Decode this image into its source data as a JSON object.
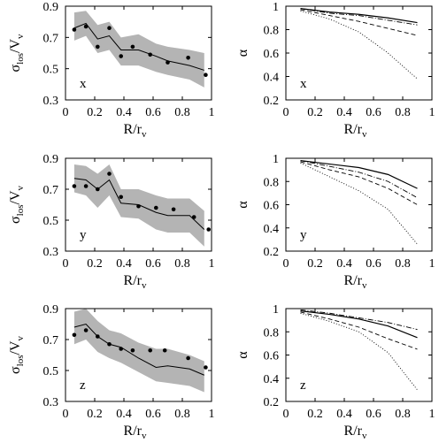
{
  "chart_data": [
    {
      "type": "line",
      "panel_label": "x",
      "xlabel": "R/r_v",
      "ylabel": "σ_los/V_v",
      "xlim": [
        0,
        1
      ],
      "ylim": [
        0.3,
        0.9
      ],
      "xticks": [
        "0",
        "0.2",
        "0.4",
        "0.6",
        "0.8",
        "1"
      ],
      "yticks": [
        "0.3",
        "0.5",
        "0.7",
        "0.9"
      ],
      "band": {
        "x": [
          0.06,
          0.14,
          0.22,
          0.3,
          0.38,
          0.5,
          0.62,
          0.7,
          0.85,
          0.95
        ],
        "lower": [
          0.68,
          0.71,
          0.6,
          0.62,
          0.52,
          0.52,
          0.48,
          0.46,
          0.43,
          0.38
        ],
        "upper": [
          0.86,
          0.87,
          0.78,
          0.8,
          0.7,
          0.72,
          0.66,
          0.64,
          0.62,
          0.6
        ]
      },
      "median": {
        "x": [
          0.06,
          0.14,
          0.22,
          0.3,
          0.38,
          0.5,
          0.62,
          0.7,
          0.85,
          0.95
        ],
        "y": [
          0.76,
          0.79,
          0.69,
          0.71,
          0.62,
          0.62,
          0.58,
          0.55,
          0.52,
          0.49
        ]
      },
      "points": {
        "x": [
          0.06,
          0.14,
          0.22,
          0.3,
          0.38,
          0.46,
          0.58,
          0.7,
          0.84,
          0.96
        ],
        "y": [
          0.75,
          0.77,
          0.64,
          0.76,
          0.58,
          0.64,
          0.59,
          0.54,
          0.57,
          0.46
        ]
      }
    },
    {
      "type": "line",
      "panel_label": "x",
      "xlabel": "R/r_v",
      "ylabel": "α",
      "xlim": [
        0,
        1
      ],
      "ylim": [
        0.2,
        1.0
      ],
      "xticks": [
        "0",
        "0.2",
        "0.4",
        "0.6",
        "0.8",
        "1"
      ],
      "yticks": [
        "0.2",
        "0.4",
        "0.6",
        "0.8",
        "1"
      ],
      "series": [
        {
          "style": "solid",
          "x": [
            0.1,
            0.3,
            0.5,
            0.7,
            0.9
          ],
          "y": [
            0.98,
            0.95,
            0.93,
            0.9,
            0.86
          ]
        },
        {
          "style": "dashdot",
          "x": [
            0.1,
            0.3,
            0.5,
            0.7,
            0.9
          ],
          "y": [
            0.98,
            0.94,
            0.92,
            0.88,
            0.84
          ]
        },
        {
          "style": "dashed",
          "x": [
            0.1,
            0.3,
            0.5,
            0.7,
            0.9
          ],
          "y": [
            0.97,
            0.92,
            0.87,
            0.81,
            0.75
          ]
        },
        {
          "style": "dotted",
          "x": [
            0.1,
            0.3,
            0.5,
            0.7,
            0.9
          ],
          "y": [
            0.96,
            0.89,
            0.78,
            0.6,
            0.38
          ]
        }
      ]
    },
    {
      "type": "line",
      "panel_label": "y",
      "xlabel": "R/r_v",
      "ylabel": "σ_los/V_v",
      "xlim": [
        0,
        1
      ],
      "ylim": [
        0.3,
        0.9
      ],
      "xticks": [
        "0",
        "0.2",
        "0.4",
        "0.6",
        "0.8",
        "1"
      ],
      "yticks": [
        "0.3",
        "0.5",
        "0.7",
        "0.9"
      ],
      "band": {
        "x": [
          0.06,
          0.14,
          0.22,
          0.3,
          0.38,
          0.5,
          0.62,
          0.7,
          0.85,
          0.95
        ],
        "lower": [
          0.68,
          0.66,
          0.58,
          0.66,
          0.52,
          0.51,
          0.44,
          0.42,
          0.42,
          0.33
        ],
        "upper": [
          0.86,
          0.85,
          0.8,
          0.86,
          0.7,
          0.7,
          0.66,
          0.64,
          0.64,
          0.56
        ]
      },
      "median": {
        "x": [
          0.06,
          0.14,
          0.22,
          0.3,
          0.38,
          0.5,
          0.62,
          0.7,
          0.85,
          0.95
        ],
        "y": [
          0.77,
          0.76,
          0.7,
          0.76,
          0.61,
          0.6,
          0.55,
          0.53,
          0.53,
          0.44
        ]
      },
      "points": {
        "x": [
          0.06,
          0.14,
          0.22,
          0.3,
          0.38,
          0.5,
          0.62,
          0.74,
          0.88,
          0.98
        ],
        "y": [
          0.72,
          0.72,
          0.7,
          0.8,
          0.65,
          0.59,
          0.58,
          0.57,
          0.52,
          0.44
        ]
      }
    },
    {
      "type": "line",
      "panel_label": "y",
      "xlabel": "R/r_v",
      "ylabel": "α",
      "xlim": [
        0,
        1
      ],
      "ylim": [
        0.2,
        1.0
      ],
      "xticks": [
        "0",
        "0.2",
        "0.4",
        "0.6",
        "0.8",
        "1"
      ],
      "yticks": [
        "0.2",
        "0.4",
        "0.6",
        "0.8",
        "1"
      ],
      "series": [
        {
          "style": "solid",
          "x": [
            0.1,
            0.3,
            0.5,
            0.7,
            0.9
          ],
          "y": [
            0.98,
            0.95,
            0.92,
            0.86,
            0.74
          ]
        },
        {
          "style": "dashdot",
          "x": [
            0.1,
            0.3,
            0.5,
            0.7,
            0.9
          ],
          "y": [
            0.98,
            0.93,
            0.88,
            0.8,
            0.66
          ]
        },
        {
          "style": "dashed",
          "x": [
            0.1,
            0.3,
            0.5,
            0.7,
            0.9
          ],
          "y": [
            0.97,
            0.9,
            0.84,
            0.74,
            0.6
          ]
        },
        {
          "style": "dotted",
          "x": [
            0.1,
            0.3,
            0.5,
            0.7,
            0.9
          ],
          "y": [
            0.96,
            0.84,
            0.72,
            0.56,
            0.26
          ]
        }
      ]
    },
    {
      "type": "line",
      "panel_label": "z",
      "xlabel": "R/r_v",
      "ylabel": "σ_los/V_v",
      "xlim": [
        0,
        1
      ],
      "ylim": [
        0.3,
        0.9
      ],
      "xticks": [
        "0",
        "0.2",
        "0.4",
        "0.6",
        "0.8",
        "1"
      ],
      "yticks": [
        "0.3",
        "0.5",
        "0.7",
        "0.9"
      ],
      "band": {
        "x": [
          0.06,
          0.14,
          0.22,
          0.3,
          0.38,
          0.5,
          0.62,
          0.7,
          0.85,
          0.95
        ],
        "lower": [
          0.67,
          0.7,
          0.62,
          0.58,
          0.55,
          0.49,
          0.43,
          0.42,
          0.4,
          0.36
        ],
        "upper": [
          0.88,
          0.9,
          0.82,
          0.76,
          0.74,
          0.68,
          0.64,
          0.64,
          0.6,
          0.56
        ]
      },
      "median": {
        "x": [
          0.06,
          0.14,
          0.22,
          0.3,
          0.38,
          0.5,
          0.62,
          0.7,
          0.85,
          0.95
        ],
        "y": [
          0.78,
          0.8,
          0.72,
          0.67,
          0.65,
          0.58,
          0.52,
          0.53,
          0.51,
          0.47
        ]
      },
      "points": {
        "x": [
          0.06,
          0.14,
          0.22,
          0.3,
          0.38,
          0.46,
          0.58,
          0.68,
          0.84,
          0.96
        ],
        "y": [
          0.73,
          0.76,
          0.72,
          0.67,
          0.64,
          0.63,
          0.63,
          0.63,
          0.58,
          0.52
        ]
      }
    },
    {
      "type": "line",
      "panel_label": "z",
      "xlabel": "R/r_v",
      "ylabel": "α",
      "xlim": [
        0,
        1
      ],
      "ylim": [
        0.2,
        1.0
      ],
      "xticks": [
        "0",
        "0.2",
        "0.4",
        "0.6",
        "0.8",
        "1"
      ],
      "yticks": [
        "0.2",
        "0.4",
        "0.6",
        "0.8",
        "1"
      ],
      "series": [
        {
          "style": "solid",
          "x": [
            0.1,
            0.3,
            0.5,
            0.7,
            0.9
          ],
          "y": [
            0.98,
            0.95,
            0.91,
            0.85,
            0.75
          ]
        },
        {
          "style": "dashdot",
          "x": [
            0.1,
            0.3,
            0.5,
            0.7,
            0.9
          ],
          "y": [
            0.99,
            0.96,
            0.92,
            0.88,
            0.82
          ]
        },
        {
          "style": "dashed",
          "x": [
            0.1,
            0.3,
            0.5,
            0.7,
            0.9
          ],
          "y": [
            0.97,
            0.91,
            0.84,
            0.74,
            0.65
          ]
        },
        {
          "style": "dotted",
          "x": [
            0.1,
            0.3,
            0.5,
            0.7,
            0.9
          ],
          "y": [
            0.96,
            0.89,
            0.8,
            0.62,
            0.3
          ]
        }
      ]
    }
  ]
}
